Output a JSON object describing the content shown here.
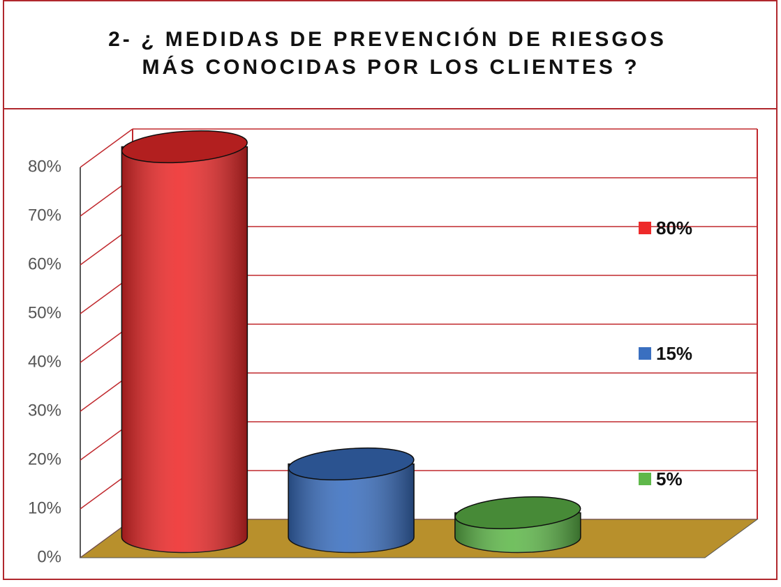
{
  "chart_data": {
    "type": "bar",
    "title": [
      "2- ¿ MEDIDAS DE PREVENCIÓN DE RIESGOS",
      "MÁS CONOCIDAS POR LOS CLIENTES ?"
    ],
    "categories": [
      null
    ],
    "series": [
      {
        "name": "80%",
        "color": "#ee2a2a",
        "values": [
          80
        ]
      },
      {
        "name": "15%",
        "color": "#3a6fc0",
        "values": [
          15
        ]
      },
      {
        "name": "5%",
        "color": "#5fb84a",
        "values": [
          5
        ]
      }
    ],
    "ylim": [
      0,
      80
    ],
    "yticks": [
      {
        "value": 0,
        "label": "0%"
      },
      {
        "value": 10,
        "label": "10%"
      },
      {
        "value": 20,
        "label": "20%"
      },
      {
        "value": 30,
        "label": "30%"
      },
      {
        "value": 40,
        "label": "40%"
      },
      {
        "value": 50,
        "label": "50%"
      },
      {
        "value": 60,
        "label": "60%"
      },
      {
        "value": 70,
        "label": "70%"
      },
      {
        "value": 80,
        "label": "80%"
      }
    ],
    "grid": true,
    "legend": "right",
    "grid_color": "#c0282d",
    "floor_color": "#b8902c"
  }
}
